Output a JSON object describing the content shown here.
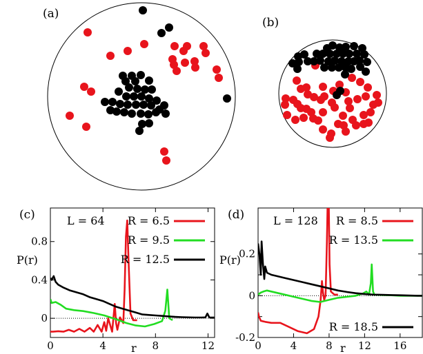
{
  "chart_data": [
    {
      "panel": "(a)",
      "type": "scatter",
      "colors": {
        "red": "#e8141c",
        "black": "#000000"
      },
      "points": {
        "red": [
          [
            127,
            47
          ],
          [
            185,
            74
          ],
          [
            160,
            81
          ],
          [
            209,
            64
          ],
          [
            271,
            67
          ],
          [
            298,
            77
          ],
          [
            295,
            67
          ],
          [
            253,
            67
          ],
          [
            266,
            74
          ],
          [
            250,
            86
          ],
          [
            256,
            103
          ],
          [
            252,
            94
          ],
          [
            268,
            91
          ],
          [
            282,
            89
          ],
          [
            283,
            98
          ],
          [
            314,
            101
          ],
          [
            317,
            113
          ],
          [
            122,
            126
          ],
          [
            132,
            133
          ],
          [
            101,
            168
          ],
          [
            125,
            184
          ],
          [
            238,
            220
          ],
          [
            241,
            233
          ]
        ],
        "black": [
          [
            207,
            15
          ],
          [
            245,
            40
          ],
          [
            234,
            48
          ],
          [
            182,
            118
          ],
          [
            178,
            110
          ],
          [
            191,
            110
          ],
          [
            204,
            109
          ],
          [
            216,
            117
          ],
          [
            196,
            118
          ],
          [
            187,
            127
          ],
          [
            199,
            129
          ],
          [
            210,
            130
          ],
          [
            220,
            130
          ],
          [
            172,
            133
          ],
          [
            183,
            140
          ],
          [
            194,
            140
          ],
          [
            205,
            140
          ],
          [
            216,
            143
          ],
          [
            227,
            146
          ],
          [
            238,
            153
          ],
          [
            231,
            159
          ],
          [
            152,
            148
          ],
          [
            163,
            148
          ],
          [
            174,
            151
          ],
          [
            185,
            152
          ],
          [
            197,
            152
          ],
          [
            208,
            152
          ],
          [
            219,
            153
          ],
          [
            160,
            160
          ],
          [
            169,
            162
          ],
          [
            180,
            163
          ],
          [
            191,
            165
          ],
          [
            204,
            165
          ],
          [
            215,
            166
          ],
          [
            226,
            163
          ],
          [
            240,
            165
          ],
          [
            206,
            180
          ],
          [
            216,
            179
          ],
          [
            202,
            190
          ],
          [
            329,
            143
          ]
        ]
      }
    },
    {
      "panel": "(b)",
      "type": "scatter",
      "colors": {
        "red": "#e8141c",
        "black": "#000000"
      },
      "points": {
        "red": [
          [
            457,
            95
          ],
          [
            430,
            117
          ],
          [
            444,
            127
          ],
          [
            468,
            126
          ],
          [
            492,
            123
          ],
          [
            510,
            113
          ],
          [
            522,
            119
          ],
          [
            436,
            129
          ],
          [
            483,
            132
          ],
          [
            501,
            134
          ],
          [
            533,
            127
          ],
          [
            414,
            143
          ],
          [
            425,
            145
          ],
          [
            446,
            137
          ],
          [
            465,
            145
          ],
          [
            455,
            141
          ],
          [
            470,
            140
          ],
          [
            518,
            144
          ],
          [
            530,
            140
          ],
          [
            546,
            138
          ],
          [
            413,
            152
          ],
          [
            431,
            151
          ],
          [
            444,
            158
          ],
          [
            481,
            149
          ],
          [
            505,
            147
          ],
          [
            507,
            157
          ],
          [
            541,
            152
          ],
          [
            548,
            149
          ],
          [
            416,
            167
          ],
          [
            436,
            157
          ],
          [
            451,
            163
          ],
          [
            468,
            163
          ],
          [
            485,
            156
          ],
          [
            497,
            168
          ],
          [
            527,
            167
          ],
          [
            537,
            163
          ],
          [
            428,
            174
          ],
          [
            440,
            171
          ],
          [
            454,
            172
          ],
          [
            490,
            180
          ],
          [
            511,
            174
          ],
          [
            534,
            178
          ],
          [
            468,
            188
          ],
          [
            480,
            194
          ],
          [
            498,
            182
          ],
          [
            516,
            182
          ],
          [
            527,
            180
          ],
          [
            461,
            175
          ],
          [
            478,
            200
          ],
          [
            501,
            191
          ]
        ],
        "black": [
          [
            474,
            70
          ],
          [
            482,
            66
          ],
          [
            492,
            69
          ],
          [
            501,
            68
          ],
          [
            513,
            67
          ],
          [
            525,
            70
          ],
          [
            432,
            82
          ],
          [
            441,
            79
          ],
          [
            459,
            78
          ],
          [
            468,
            78
          ],
          [
            478,
            78
          ],
          [
            488,
            78
          ],
          [
            497,
            78
          ],
          [
            506,
            78
          ],
          [
            517,
            78
          ],
          [
            528,
            79
          ],
          [
            424,
            92
          ],
          [
            433,
            90
          ],
          [
            446,
            89
          ],
          [
            455,
            89
          ],
          [
            464,
            88
          ],
          [
            476,
            89
          ],
          [
            485,
            88
          ],
          [
            495,
            89
          ],
          [
            505,
            89
          ],
          [
            513,
            89
          ],
          [
            521,
            88
          ],
          [
            532,
            90
          ],
          [
            470,
            98
          ],
          [
            481,
            98
          ],
          [
            491,
            98
          ],
          [
            501,
            98
          ],
          [
            509,
            100
          ],
          [
            431,
            100
          ],
          [
            500,
            108
          ],
          [
            522,
            97
          ],
          [
            530,
            104
          ],
          [
            493,
            132
          ],
          [
            488,
            138
          ]
        ]
      }
    },
    {
      "panel": "(c)",
      "type": "line",
      "annotation": "L = 64",
      "ylabel": "P(r)",
      "xlabel": "r",
      "xlim": [
        0,
        12.5
      ],
      "ylim": [
        -0.2,
        1.15
      ],
      "xticks": [
        0,
        4,
        8,
        12
      ],
      "yticks": [
        0,
        0.4,
        0.8
      ],
      "ytick_labels": [
        "0",
        "0.4",
        "0.8"
      ],
      "series": [
        {
          "name": "R = 6.5",
          "color": "#e8141c",
          "x": [
            0,
            0.2,
            0.6,
            1.0,
            1.4,
            1.8,
            2.2,
            2.6,
            3.0,
            3.3,
            3.6,
            3.9,
            4.1,
            4.25,
            4.4,
            4.7,
            4.9,
            5.0,
            5.1,
            5.3,
            5.55,
            5.65,
            5.75,
            5.85,
            5.95,
            6.1,
            6.3,
            6.6
          ],
          "y": [
            -0.14,
            -0.14,
            -0.135,
            -0.14,
            -0.12,
            -0.14,
            -0.11,
            -0.14,
            -0.1,
            -0.14,
            -0.07,
            -0.14,
            -0.04,
            -0.13,
            0.0,
            -0.14,
            0.15,
            -0.05,
            -0.12,
            0.01,
            -0.05,
            0.3,
            0.85,
            1.02,
            0.6,
            0.05,
            -0.02,
            -0.02
          ]
        },
        {
          "name": "R = 9.5",
          "color": "#22dd22",
          "x": [
            0,
            0.1,
            0.4,
            0.8,
            1.2,
            1.8,
            2.5,
            3.3,
            4.1,
            5.0,
            5.8,
            6.5,
            7.2,
            7.9,
            8.5,
            8.75,
            8.9,
            9.05,
            9.3
          ],
          "y": [
            0.2,
            0.16,
            0.17,
            0.14,
            0.1,
            0.085,
            0.075,
            0.055,
            0.03,
            -0.01,
            -0.05,
            -0.075,
            -0.085,
            -0.06,
            -0.03,
            0.08,
            0.3,
            0.0,
            -0.02
          ]
        },
        {
          "name": "R = 12.5",
          "color": "#000000",
          "x": [
            0,
            0.1,
            0.25,
            0.4,
            0.6,
            1.0,
            1.5,
            2.0,
            2.5,
            3.0,
            3.5,
            4.0,
            4.5,
            5.0,
            5.5,
            6.0,
            6.5,
            7.0,
            7.5,
            8.0,
            8.5,
            9.0,
            9.5,
            10.0,
            10.5,
            11.0,
            11.5,
            11.8,
            11.95,
            12.1,
            12.5
          ],
          "y": [
            0.42,
            0.4,
            0.44,
            0.38,
            0.35,
            0.32,
            0.29,
            0.27,
            0.25,
            0.22,
            0.2,
            0.18,
            0.15,
            0.12,
            0.1,
            0.08,
            0.06,
            0.04,
            0.035,
            0.03,
            0.025,
            0.02,
            0.015,
            0.012,
            0.01,
            0.008,
            0.008,
            0.01,
            0.05,
            0.008,
            0.008
          ]
        }
      ]
    },
    {
      "panel": "(d)",
      "type": "line",
      "annotation": "L = 128",
      "ylabel": "P(r)",
      "xlabel": "r",
      "xlim": [
        0,
        18.5
      ],
      "ylim": [
        -0.2,
        0.42
      ],
      "xticks": [
        0,
        4,
        8,
        12,
        16
      ],
      "yticks": [
        -0.2,
        -0.1,
        0,
        0.1,
        0.2
      ],
      "ytick_labels": [
        "-0.2",
        "",
        "0",
        "",
        "0.2"
      ],
      "series": [
        {
          "name": "R = 8.5",
          "color": "#e8141c",
          "x": [
            0,
            0.1,
            0.3,
            0.8,
            1.5,
            2.5,
            3.5,
            4.5,
            5.5,
            6.3,
            6.8,
            7.05,
            7.2,
            7.3,
            7.45,
            7.6,
            7.75,
            7.85,
            7.95,
            8.05,
            8.2,
            8.6,
            9.0
          ],
          "y": [
            -0.08,
            -0.1,
            -0.12,
            -0.125,
            -0.13,
            -0.13,
            -0.15,
            -0.17,
            -0.18,
            -0.16,
            -0.1,
            -0.02,
            0.07,
            0.02,
            -0.02,
            0.0,
            0.25,
            0.48,
            0.48,
            0.15,
            0.02,
            0.005,
            0.005
          ]
        },
        {
          "name": "R = 13.5",
          "color": "#22dd22",
          "x": [
            0,
            0.3,
            0.6,
            1.0,
            1.5,
            2.0,
            3.0,
            4.0,
            5.0,
            6.0,
            7.0,
            8.0,
            9.0,
            10.0,
            11.0,
            11.8,
            12.2,
            12.5,
            12.7,
            12.8,
            12.95,
            13.1,
            14.0,
            15.0,
            16.0,
            17.0,
            18.0,
            18.5
          ],
          "y": [
            0.005,
            0.015,
            0.02,
            0.025,
            0.02,
            0.015,
            0.005,
            -0.005,
            -0.015,
            -0.025,
            -0.03,
            -0.02,
            -0.01,
            -0.005,
            0.0,
            0.01,
            0.02,
            0.005,
            0.06,
            0.15,
            0.02,
            0.005,
            0.003,
            0.002,
            0.0,
            0.0,
            0.0,
            0.0
          ]
        },
        {
          "name": "R = 18.5",
          "color": "#000000",
          "x": [
            0,
            0.15,
            0.3,
            0.4,
            0.55,
            0.7,
            0.8,
            1.0,
            1.5,
            2.0,
            3.0,
            4.0,
            5.0,
            6.0,
            7.0,
            8.0,
            9.0,
            10.0,
            11.0,
            12.0,
            13.0,
            14.0,
            15.0,
            16.0,
            17.0,
            18.0,
            18.5
          ],
          "y": [
            0.25,
            0.2,
            0.1,
            0.26,
            0.15,
            0.08,
            0.14,
            0.11,
            0.1,
            0.095,
            0.085,
            0.075,
            0.065,
            0.055,
            0.045,
            0.035,
            0.025,
            0.018,
            0.012,
            0.008,
            0.005,
            0.004,
            0.003,
            0.002,
            0.001,
            0.0,
            0.0
          ]
        }
      ]
    }
  ]
}
